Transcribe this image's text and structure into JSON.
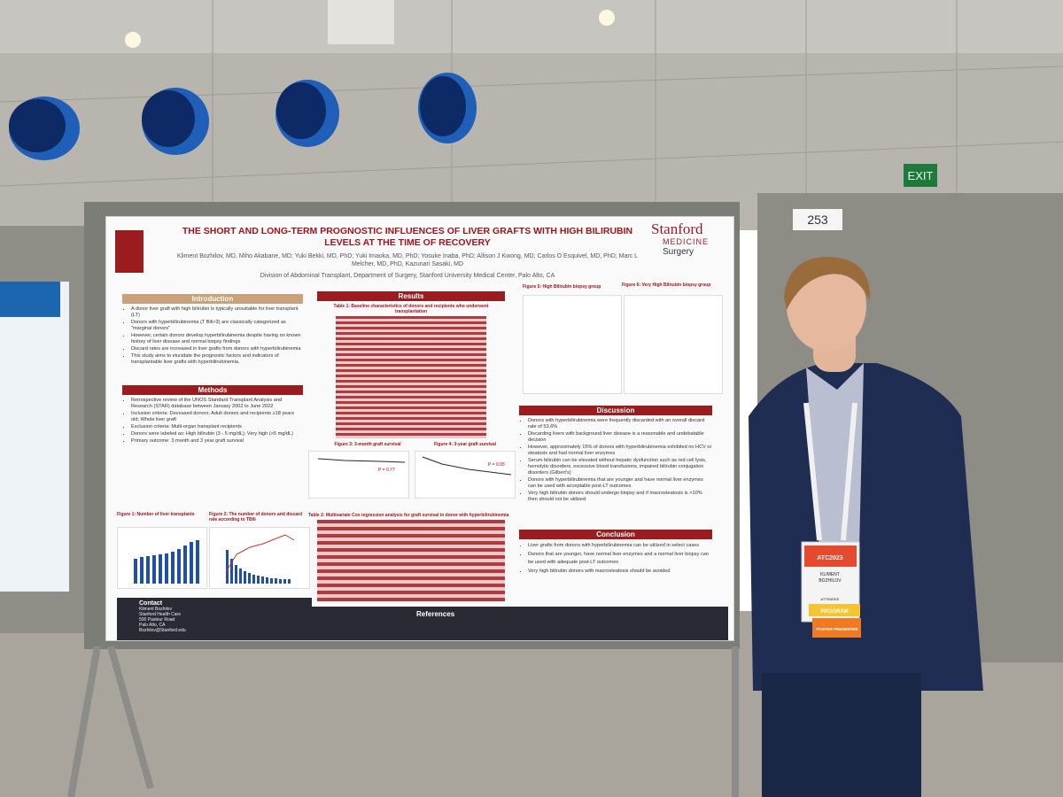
{
  "scene": {
    "exit_sign": "EXIT",
    "booth_number": "253"
  },
  "poster": {
    "title": "THE SHORT AND LONG-TERM PROGNOSTIC INFLUENCES OF LIVER GRAFTS WITH HIGH BILIRUBIN LEVELS AT THE TIME OF RECOVERY",
    "authors": "Kliment Bozhilov, MD, Miho Akabane, MD; Yuki Bekki, MD, PhD; Yuki Imaoka, MD, PhD; Yosuke Inaba, PhD; Allison J Kwong, MD; Carlos O Esquivel, MD, PhD; Marc L Melcher, MD, PhD, Kazunari Sasaki, MD",
    "affiliation": "Division of Abdominal Transplant, Department of Surgery, Stanford University Medical Center, Palo Alto, CA",
    "logo": {
      "name": "Stanford",
      "line1": "MEDICINE",
      "line2": "Surgery"
    },
    "introduction": {
      "heading": "Introduction",
      "bullets": [
        "A donor liver graft with high bilirubin is typically unsuitable for liver transplant (LT)",
        "Donors with hyperbilirubinemia (T Bili>3) are classically categorized as \"marginal donors\"",
        "However, certain donors develop hyperbilirubinemia despite having no known history of liver disease and normal biopsy findings",
        "Discard rates are increased in liver grafts from donors with hyperbilirubinemia",
        "This study aims to elucidate the prognostic factors and indicators of transplantable liver grafts with hyperbilirubinemia."
      ]
    },
    "methods": {
      "heading": "Methods",
      "bullets": [
        "Retrospective review of the UNOS Standard Transplant Analysis and Research (STAR) database between January 2002 to June 2022",
        "Inclusion criteria: Deceased donors; Adult donors and recipients ≥18 years old; Whole liver graft",
        "Exclusion criteria: Multi-organ transplant recipients",
        "Donors were labeled as: High bilirubin (3 - 5 mg/dL); Very high (>5 mg/dL)",
        "Primary outcome: 3 month and 3 year graft survival"
      ]
    },
    "figure1": "Figure 1: Number of liver transplants",
    "figure2": "Figure 2: The number of donors and discard rate according to TBili",
    "results": {
      "heading": "Results",
      "table1": "Table 1: Baseline characteristics of donors and recipients who underwent transplantation",
      "figure3": "Figure 3: 3-month graft survival",
      "figure3_p": "P = 0.77",
      "figure4": "Figure 4: 3-year graft survival",
      "figure4_p": "P = 0.93",
      "table2": "Table 2: Multivariate Cox regression analysis for graft survival in donor with hyperbilirubinemia"
    },
    "figure5": "Figure 5: High Bilirubin biopsy group",
    "figure6": "Figure 6: Very High Bilirubin biopsy group",
    "discussion": {
      "heading": "Discussion",
      "bullets": [
        "Donors with hyperbilirubinemia were frequently discarded with an overall discard rate of 53.6%",
        "Discarding livers with background liver disease is a reasonable and undebatable decision",
        "However, approximately 15% of donors with hyperbilirubinemia exhibited no HCV or steatosis and had normal liver enzymes",
        "Serum bilirubin can be elevated without hepatic dysfunction such as red cell lysis, hemolytic disorders, excessive blood transfusions, impaired bilirubin conjugation disorders (Gilbert's)",
        "Donors with hyperbilirubinemia that are younger and have normal liver enzymes can be used with acceptable post-LT outcomes",
        "Very high bilirubin donors should undergo biopsy and if macrosteatosis is >10% then should not be utilized"
      ]
    },
    "conclusion": {
      "heading": "Conclusion",
      "bullets": [
        "Liver grafts from donors with hyperbilirubinemia can be utilized in select cases",
        "Donors that are younger, have normal liver enzymes and a normal liver biopsy can be used with adequate post-LT outcomes",
        "Very high bilirubin donors with macrosteatosis should be avoided"
      ]
    },
    "contact": {
      "heading": "Contact",
      "lines": [
        "Kliment Bozhilov",
        "Stanford Health Care",
        "500 Pasteur Road",
        "Palo Alto, CA",
        "Bozhilov@Stanford.edu"
      ]
    },
    "references": {
      "heading": "References"
    }
  },
  "badge": {
    "first_name": "KLIMENT",
    "last_name": "BOZHILOV",
    "event": "ATC2023",
    "role": "ATTENDEE",
    "ribbon1": "PROGRAM",
    "ribbon2": "POSTER PRESENTER"
  }
}
